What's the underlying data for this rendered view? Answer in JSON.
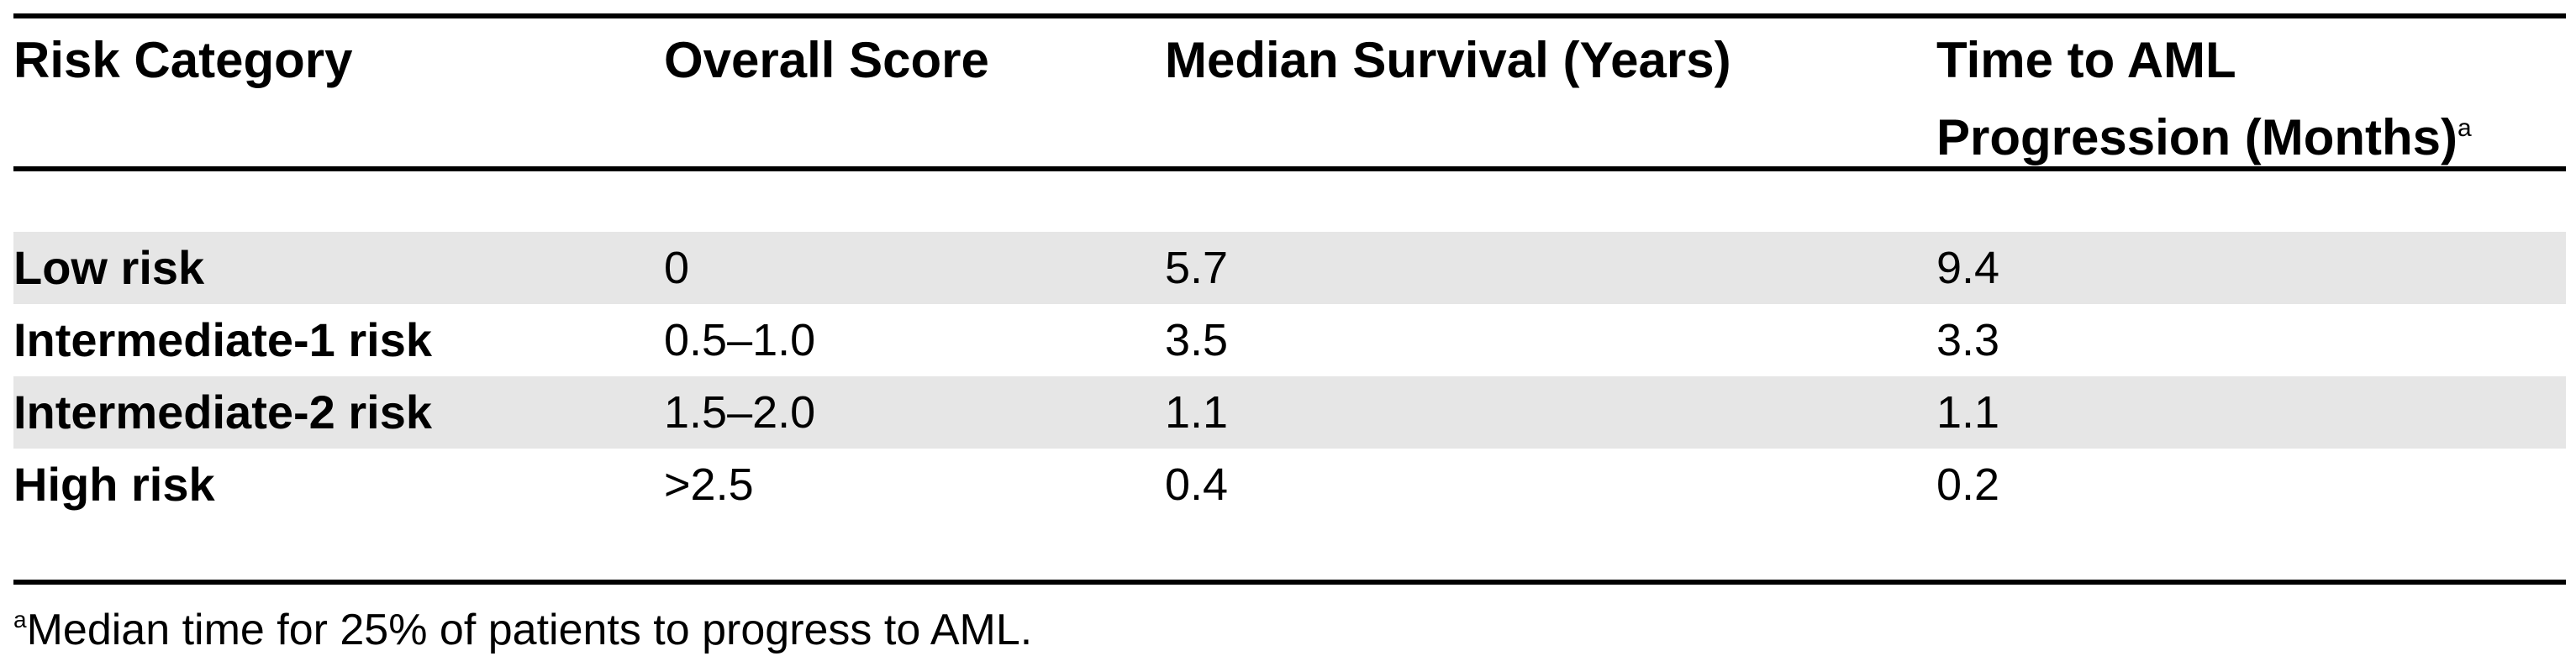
{
  "table": {
    "headers": {
      "risk_category": "Risk Category",
      "overall_score": "Overall Score",
      "median_survival": "Median Survival (Years)",
      "time_to_aml_line1": "Time to AML",
      "time_to_aml_line2": "Progression (Months)",
      "time_to_aml_marker": "a"
    },
    "rows": [
      {
        "category": "Low risk",
        "score": "0",
        "survival": "5.7",
        "aml": "9.4",
        "shaded": true
      },
      {
        "category": "Intermediate-1 risk",
        "score": "0.5–1.0",
        "survival": "3.5",
        "aml": "3.3",
        "shaded": false
      },
      {
        "category": "Intermediate-2 risk",
        "score": "1.5–2.0",
        "survival": "1.1",
        "aml": "1.1",
        "shaded": true
      },
      {
        "category": "High risk",
        "score": ">2.5",
        "survival": "0.4",
        "aml": "0.2",
        "shaded": false
      }
    ],
    "row_shade_color": "#e6e6e6"
  },
  "footnote": {
    "marker": "a",
    "text": "Median time for 25% of patients to progress to AML."
  }
}
